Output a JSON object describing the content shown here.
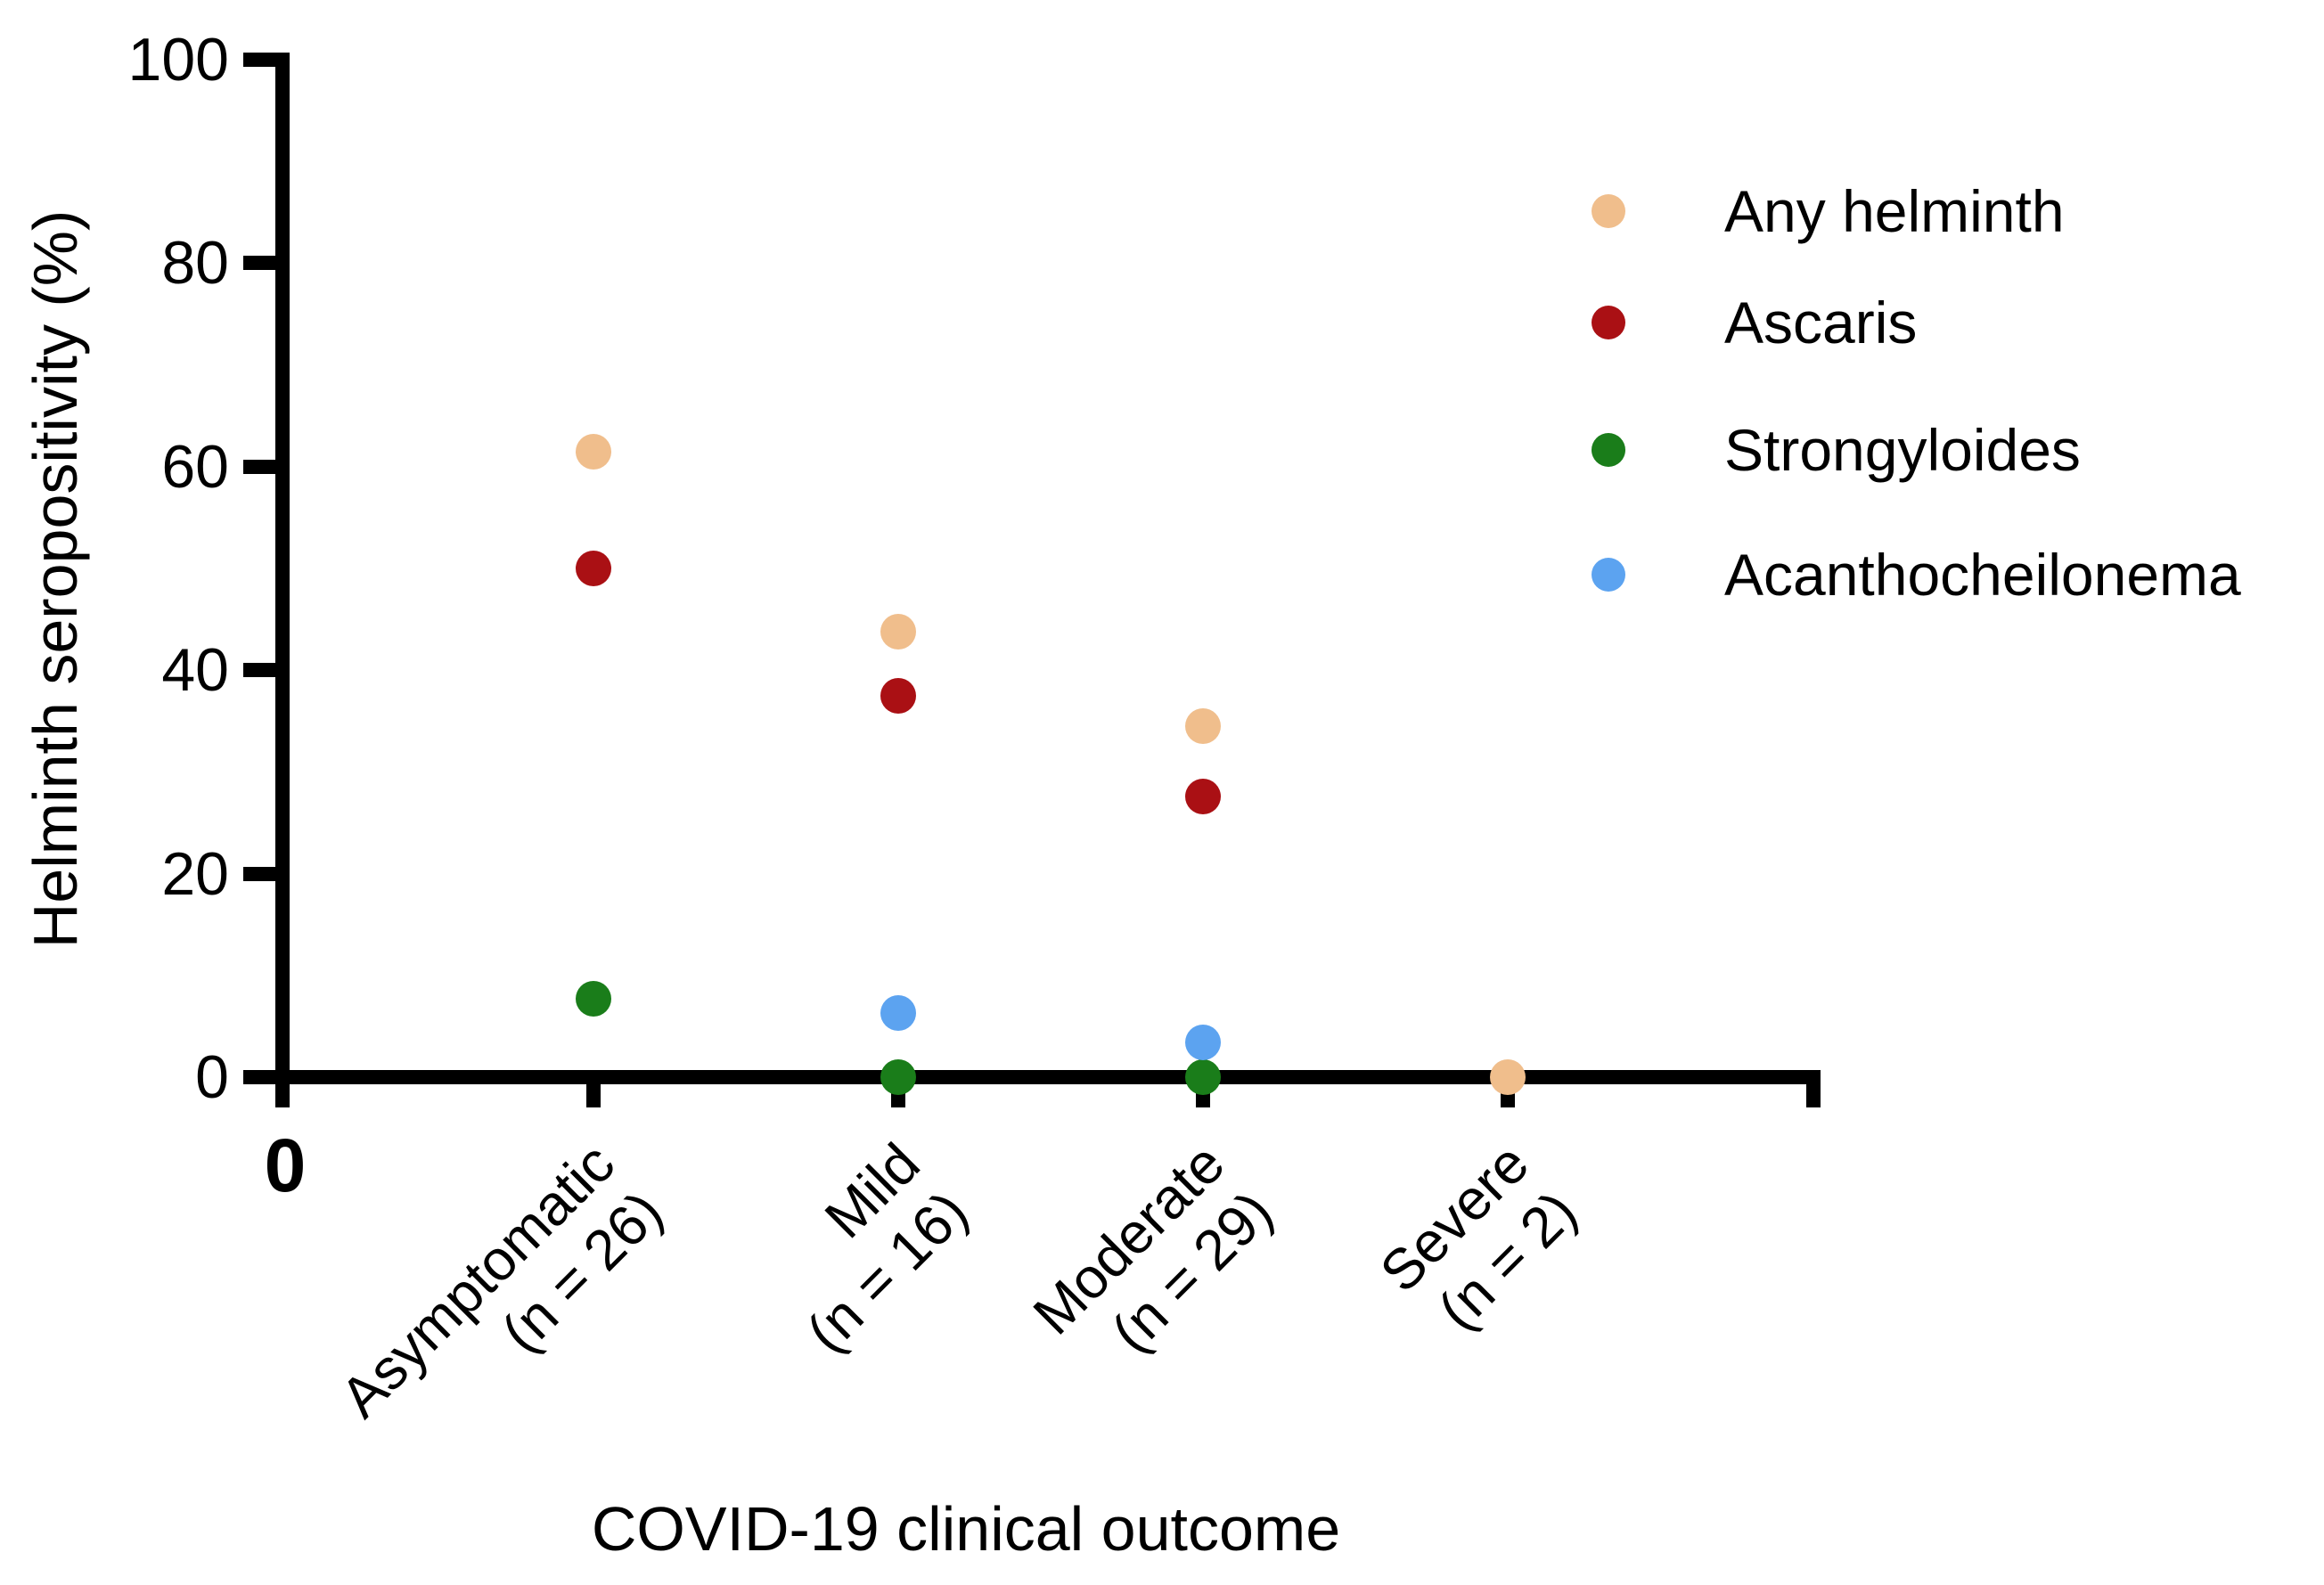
{
  "figure": {
    "background": "#ffffff",
    "text_color": "#000000",
    "axis_color": "#000000"
  },
  "y_axis": {
    "title": "Helminth seropositivity (%)",
    "tick_labels": [
      "0",
      "20",
      "40",
      "60",
      "80",
      "100"
    ],
    "origin_label": "0"
  },
  "x_axis": {
    "title": "COVID-19 clinical outcome",
    "categories": [
      {
        "label": "Asymptomatic",
        "n_label": "(n = 26)"
      },
      {
        "label": "Mild",
        "n_label": "(n = 16)"
      },
      {
        "label": "Moderate",
        "n_label": "(n = 29)"
      },
      {
        "label": "Severe",
        "n_label": "(n = 2)"
      }
    ]
  },
  "legend": {
    "items": [
      {
        "label": "Any helminth",
        "color": "#F0BE8C"
      },
      {
        "label": "Ascaris",
        "color": "#AA1014"
      },
      {
        "label": "Strongyloides",
        "color": "#1A7D1A"
      },
      {
        "label": "Acanthocheilonema",
        "color": "#5CA3F0"
      }
    ]
  },
  "chart_data": {
    "type": "scatter",
    "title": "",
    "xlabel": "COVID-19 clinical outcome",
    "ylabel": "Helminth seropositivity (%)",
    "ylim": [
      0,
      100
    ],
    "yticks": [
      0,
      20,
      40,
      60,
      80,
      100
    ],
    "grid": false,
    "legend_position": "top-right",
    "categories": [
      "Asymptomatic (n = 26)",
      "Mild (n = 16)",
      "Moderate (n = 29)",
      "Severe (n = 2)"
    ],
    "series": [
      {
        "name": "Any helminth",
        "color": "#F0BE8C",
        "values": [
          61.5,
          43.8,
          34.5,
          0
        ]
      },
      {
        "name": "Ascaris",
        "color": "#AA1014",
        "values": [
          50,
          37.5,
          27.6,
          null
        ]
      },
      {
        "name": "Strongyloides",
        "color": "#1A7D1A",
        "values": [
          7.7,
          0,
          0,
          null
        ]
      },
      {
        "name": "Acanthocheilonema",
        "color": "#5CA3F0",
        "values": [
          null,
          6.3,
          3.4,
          null
        ]
      }
    ]
  }
}
